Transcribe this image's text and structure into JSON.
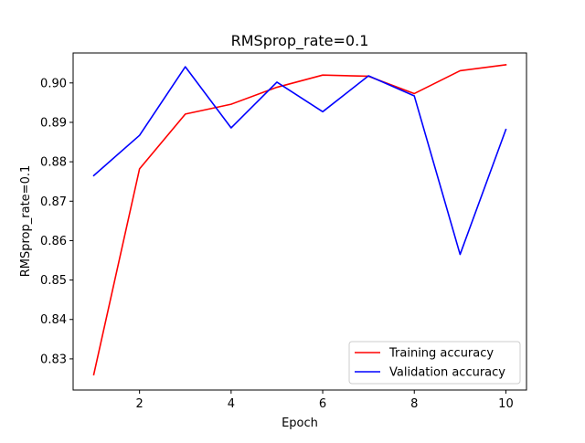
{
  "chart_data": {
    "type": "line",
    "title": "RMSprop_rate=0.1",
    "xlabel": "Epoch",
    "ylabel": "RMSprop_rate=0.1",
    "x": [
      1,
      2,
      3,
      4,
      5,
      6,
      7,
      8,
      9,
      10
    ],
    "xlim": [
      0.55,
      10.45
    ],
    "ylim": [
      0.8221,
      0.9076
    ],
    "xticks": [
      2,
      4,
      6,
      8,
      10
    ],
    "xtick_labels": [
      "2",
      "4",
      "6",
      "8",
      "10"
    ],
    "yticks": [
      0.83,
      0.84,
      0.85,
      0.86,
      0.87,
      0.88,
      0.89,
      0.9
    ],
    "ytick_labels": [
      "0.83",
      "0.84",
      "0.85",
      "0.86",
      "0.87",
      "0.88",
      "0.89",
      "0.90"
    ],
    "grid": false,
    "legend_position": "bottom-right",
    "series": [
      {
        "name": "Training accuracy",
        "color": "#ff0000",
        "values": [
          0.826,
          0.8782,
          0.8921,
          0.8946,
          0.8989,
          0.902,
          0.9017,
          0.8973,
          0.9031,
          0.9046
        ]
      },
      {
        "name": "Validation accuracy",
        "color": "#0000ff",
        "values": [
          0.8765,
          0.8867,
          0.9041,
          0.8886,
          0.9002,
          0.8927,
          0.9018,
          0.8967,
          0.8565,
          0.8882
        ]
      }
    ]
  }
}
